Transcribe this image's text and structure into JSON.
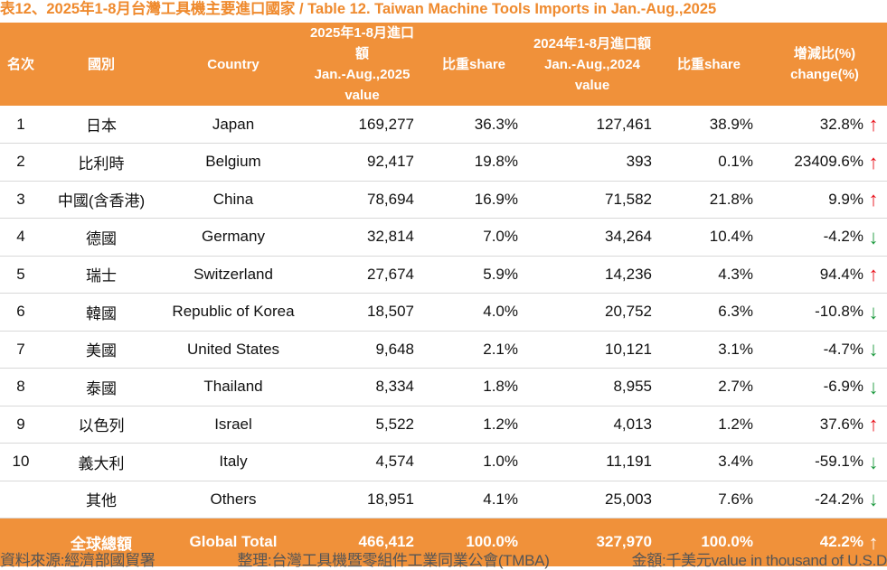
{
  "title": "表12、2025年1-8月台灣工具機主要進口國家 / Table 12. Taiwan Machine Tools Imports in Jan.-Aug.,2025",
  "headers": {
    "rank": "名次",
    "country_zh": "國別",
    "country_en": "Country",
    "v2025_l1": "2025年1-8月進口額",
    "v2025_l2": "Jan.-Aug.,2025 value",
    "share2025": "比重share",
    "v2024_l1": "2024年1-8月進口額",
    "v2024_l2": "Jan.-Aug.,2024 value",
    "share2024": "比重share",
    "change_l1": "增減比(%)",
    "change_l2": "change(%)"
  },
  "rows": [
    {
      "rank": "1",
      "zh": "日本",
      "en": "Japan",
      "v2025": "169,277",
      "s2025": "36.3%",
      "v2024": "127,461",
      "s2024": "38.9%",
      "change": "32.8%",
      "dir": "up"
    },
    {
      "rank": "2",
      "zh": "比利時",
      "en": "Belgium",
      "v2025": "92,417",
      "s2025": "19.8%",
      "v2024": "393",
      "s2024": "0.1%",
      "change": "23409.6%",
      "dir": "up"
    },
    {
      "rank": "3",
      "zh": "中國(含香港)",
      "en": "China",
      "v2025": "78,694",
      "s2025": "16.9%",
      "v2024": "71,582",
      "s2024": "21.8%",
      "change": "9.9%",
      "dir": "up"
    },
    {
      "rank": "4",
      "zh": "德國",
      "en": "Germany",
      "v2025": "32,814",
      "s2025": "7.0%",
      "v2024": "34,264",
      "s2024": "10.4%",
      "change": "-4.2%",
      "dir": "down"
    },
    {
      "rank": "5",
      "zh": "瑞士",
      "en": "Switzerland",
      "v2025": "27,674",
      "s2025": "5.9%",
      "v2024": "14,236",
      "s2024": "4.3%",
      "change": "94.4%",
      "dir": "up"
    },
    {
      "rank": "6",
      "zh": "韓國",
      "en": "Republic of Korea",
      "v2025": "18,507",
      "s2025": "4.0%",
      "v2024": "20,752",
      "s2024": "6.3%",
      "change": "-10.8%",
      "dir": "down"
    },
    {
      "rank": "7",
      "zh": "美國",
      "en": "United States",
      "v2025": "9,648",
      "s2025": "2.1%",
      "v2024": "10,121",
      "s2024": "3.1%",
      "change": "-4.7%",
      "dir": "down"
    },
    {
      "rank": "8",
      "zh": "泰國",
      "en": "Thailand",
      "v2025": "8,334",
      "s2025": "1.8%",
      "v2024": "8,955",
      "s2024": "2.7%",
      "change": "-6.9%",
      "dir": "down"
    },
    {
      "rank": "9",
      "zh": "以色列",
      "en": "Israel",
      "v2025": "5,522",
      "s2025": "1.2%",
      "v2024": "4,013",
      "s2024": "1.2%",
      "change": "37.6%",
      "dir": "up"
    },
    {
      "rank": "10",
      "zh": "義大利",
      "en": "Italy",
      "v2025": "4,574",
      "s2025": "1.0%",
      "v2024": "11,191",
      "s2024": "3.4%",
      "change": "-59.1%",
      "dir": "down"
    },
    {
      "rank": "",
      "zh": "其他",
      "en": "Others",
      "v2025": "18,951",
      "s2025": "4.1%",
      "v2024": "25,003",
      "s2024": "7.6%",
      "change": "-24.2%",
      "dir": "down"
    }
  ],
  "total": {
    "zh": "全球總額",
    "en": "Global Total",
    "v2025": "466,412",
    "s2025": "100.0%",
    "v2024": "327,970",
    "s2024": "100.0%",
    "change": "42.2%",
    "dir": "up"
  },
  "footer": {
    "source": "資料來源:經濟部國貿署",
    "compiled": "整理:台灣工具機暨零組件工業同業公會(TMBA)",
    "unit": "金額:千美元value in thousand of U.S.D"
  },
  "colors": {
    "header": "#f0913a",
    "up": "#e8101a",
    "down": "#1c9a3e"
  }
}
